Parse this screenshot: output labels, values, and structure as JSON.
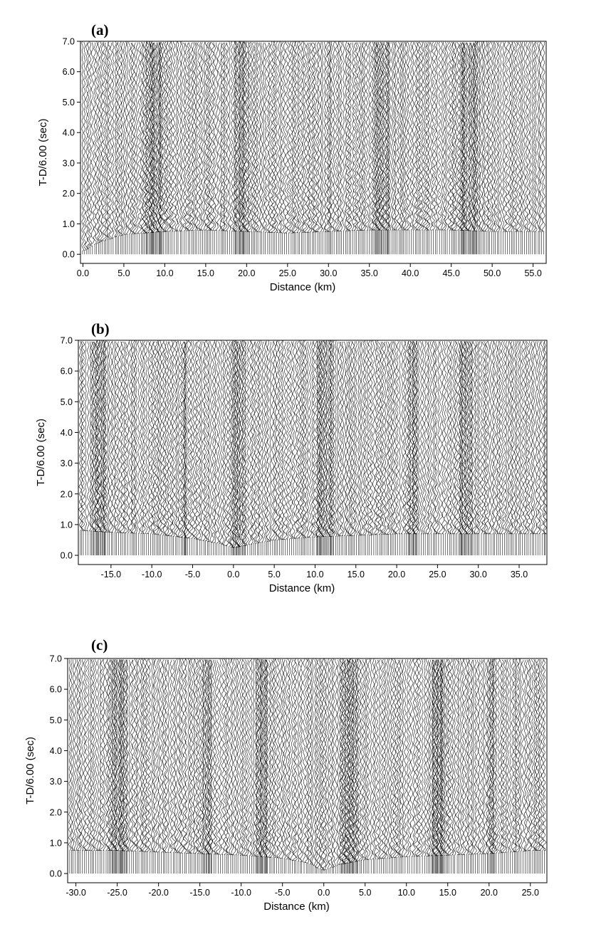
{
  "chart_data": [
    {
      "type": "seismic-record-section",
      "panel_label": "(a)",
      "xlabel": "Distance (km)",
      "ylabel": "T-D/6.00 (sec)",
      "xlim": [
        -0.3,
        56.6
      ],
      "ylim": [
        -0.3,
        7.0
      ],
      "x_ticks": [
        0,
        5,
        10,
        15,
        20,
        25,
        30,
        35,
        40,
        45,
        50,
        55
      ],
      "x_tick_labels": [
        "0.0",
        "5.0",
        "10.0",
        "15.0",
        "20.0",
        "25.0",
        "30.0",
        "35.0",
        "40.0",
        "45.0",
        "50.0",
        "55.0"
      ],
      "y_ticks": [
        0,
        1,
        2,
        3,
        4,
        5,
        6,
        7
      ],
      "y_tick_labels": [
        "0.0",
        "1.0",
        "2.0",
        "3.0",
        "4.0",
        "5.0",
        "6.0",
        "7.0"
      ],
      "first_arrival": {
        "distance": [
          0,
          2,
          5,
          10,
          15,
          20,
          25,
          30,
          35,
          40,
          45,
          50,
          55
        ],
        "time": [
          0.1,
          0.4,
          0.65,
          0.75,
          0.8,
          0.75,
          0.7,
          0.75,
          0.8,
          0.8,
          0.8,
          0.75,
          0.75
        ]
      }
    },
    {
      "type": "seismic-record-section",
      "panel_label": "(b)",
      "xlabel": "Distance (km)",
      "ylabel": "T-D/6.00 (sec)",
      "xlim": [
        -19.0,
        38.4
      ],
      "ylim": [
        -0.3,
        7.0
      ],
      "x_ticks": [
        -15,
        -10,
        -5,
        0,
        5,
        10,
        15,
        20,
        25,
        30,
        35
      ],
      "x_tick_labels": [
        "-15.0",
        "-10.0",
        "-5.0",
        "0.0",
        "5.0",
        "10.0",
        "15.0",
        "20.0",
        "25.0",
        "30.0",
        "35.0"
      ],
      "y_ticks": [
        0,
        1,
        2,
        3,
        4,
        5,
        6,
        7
      ],
      "y_tick_labels": [
        "0.0",
        "1.0",
        "2.0",
        "3.0",
        "4.0",
        "5.0",
        "6.0",
        "7.0"
      ],
      "first_arrival": {
        "distance": [
          -18,
          -15,
          -10,
          -5,
          -2,
          0,
          2,
          5,
          10,
          15,
          20,
          25,
          30,
          35,
          38
        ],
        "time": [
          0.8,
          0.75,
          0.7,
          0.55,
          0.4,
          0.25,
          0.35,
          0.5,
          0.6,
          0.65,
          0.7,
          0.7,
          0.7,
          0.7,
          0.7
        ]
      }
    },
    {
      "type": "seismic-record-section",
      "panel_label": "(c)",
      "xlabel": "Distance (km)",
      "ylabel": "T-D/6.00 (sec)",
      "xlim": [
        -31.0,
        27.0
      ],
      "ylim": [
        -0.3,
        7.0
      ],
      "x_ticks": [
        -30,
        -25,
        -20,
        -15,
        -10,
        -5,
        0,
        5,
        10,
        15,
        20,
        25
      ],
      "x_tick_labels": [
        "-30.0",
        "-25.0",
        "-20.0",
        "-15.0",
        "-10.0",
        "-5.0",
        "0.0",
        "5.0",
        "10.0",
        "15.0",
        "20.0",
        "25.0"
      ],
      "y_ticks": [
        0,
        1,
        2,
        3,
        4,
        5,
        6,
        7
      ],
      "y_tick_labels": [
        "0.0",
        "1.0",
        "2.0",
        "3.0",
        "4.0",
        "5.0",
        "6.0",
        "7.0"
      ],
      "first_arrival": {
        "distance": [
          -30,
          -25,
          -20,
          -15,
          -10,
          -5,
          -2,
          0,
          2,
          5,
          10,
          15,
          20,
          25
        ],
        "time": [
          0.75,
          0.75,
          0.7,
          0.65,
          0.6,
          0.5,
          0.35,
          0.1,
          0.3,
          0.45,
          0.55,
          0.6,
          0.65,
          0.75
        ]
      }
    }
  ]
}
